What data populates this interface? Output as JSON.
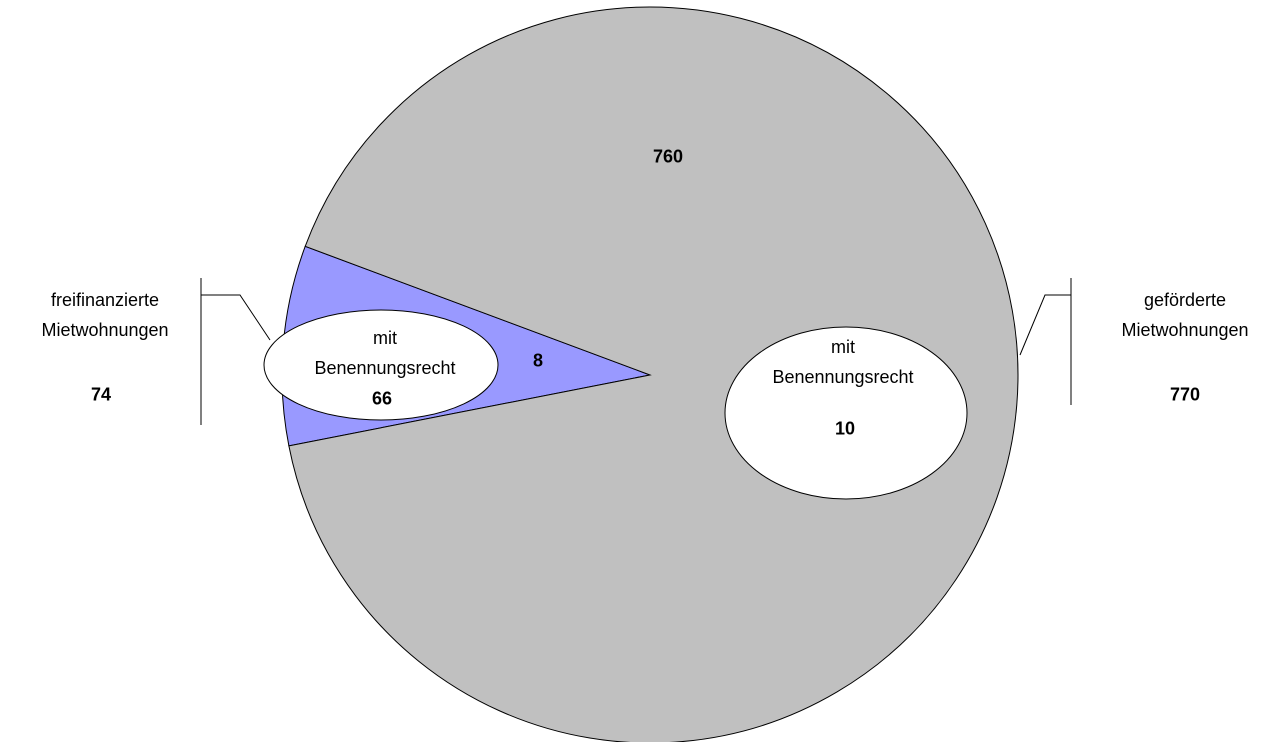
{
  "chart_data": {
    "type": "pie",
    "series": [
      {
        "name": "freifinanzierte Mietwohnungen",
        "value": 74,
        "color": "#9999ff",
        "parts": [
          {
            "label": "mit Benennungsrecht",
            "value": 66
          },
          {
            "value": 8
          }
        ]
      },
      {
        "name": "geförderte Mietwohnungen",
        "value": 770,
        "color": "#c0c0c0",
        "parts": [
          {
            "label": "mit Benennungsrecht",
            "value": 10
          },
          {
            "value": 760
          }
        ]
      }
    ]
  }
}
